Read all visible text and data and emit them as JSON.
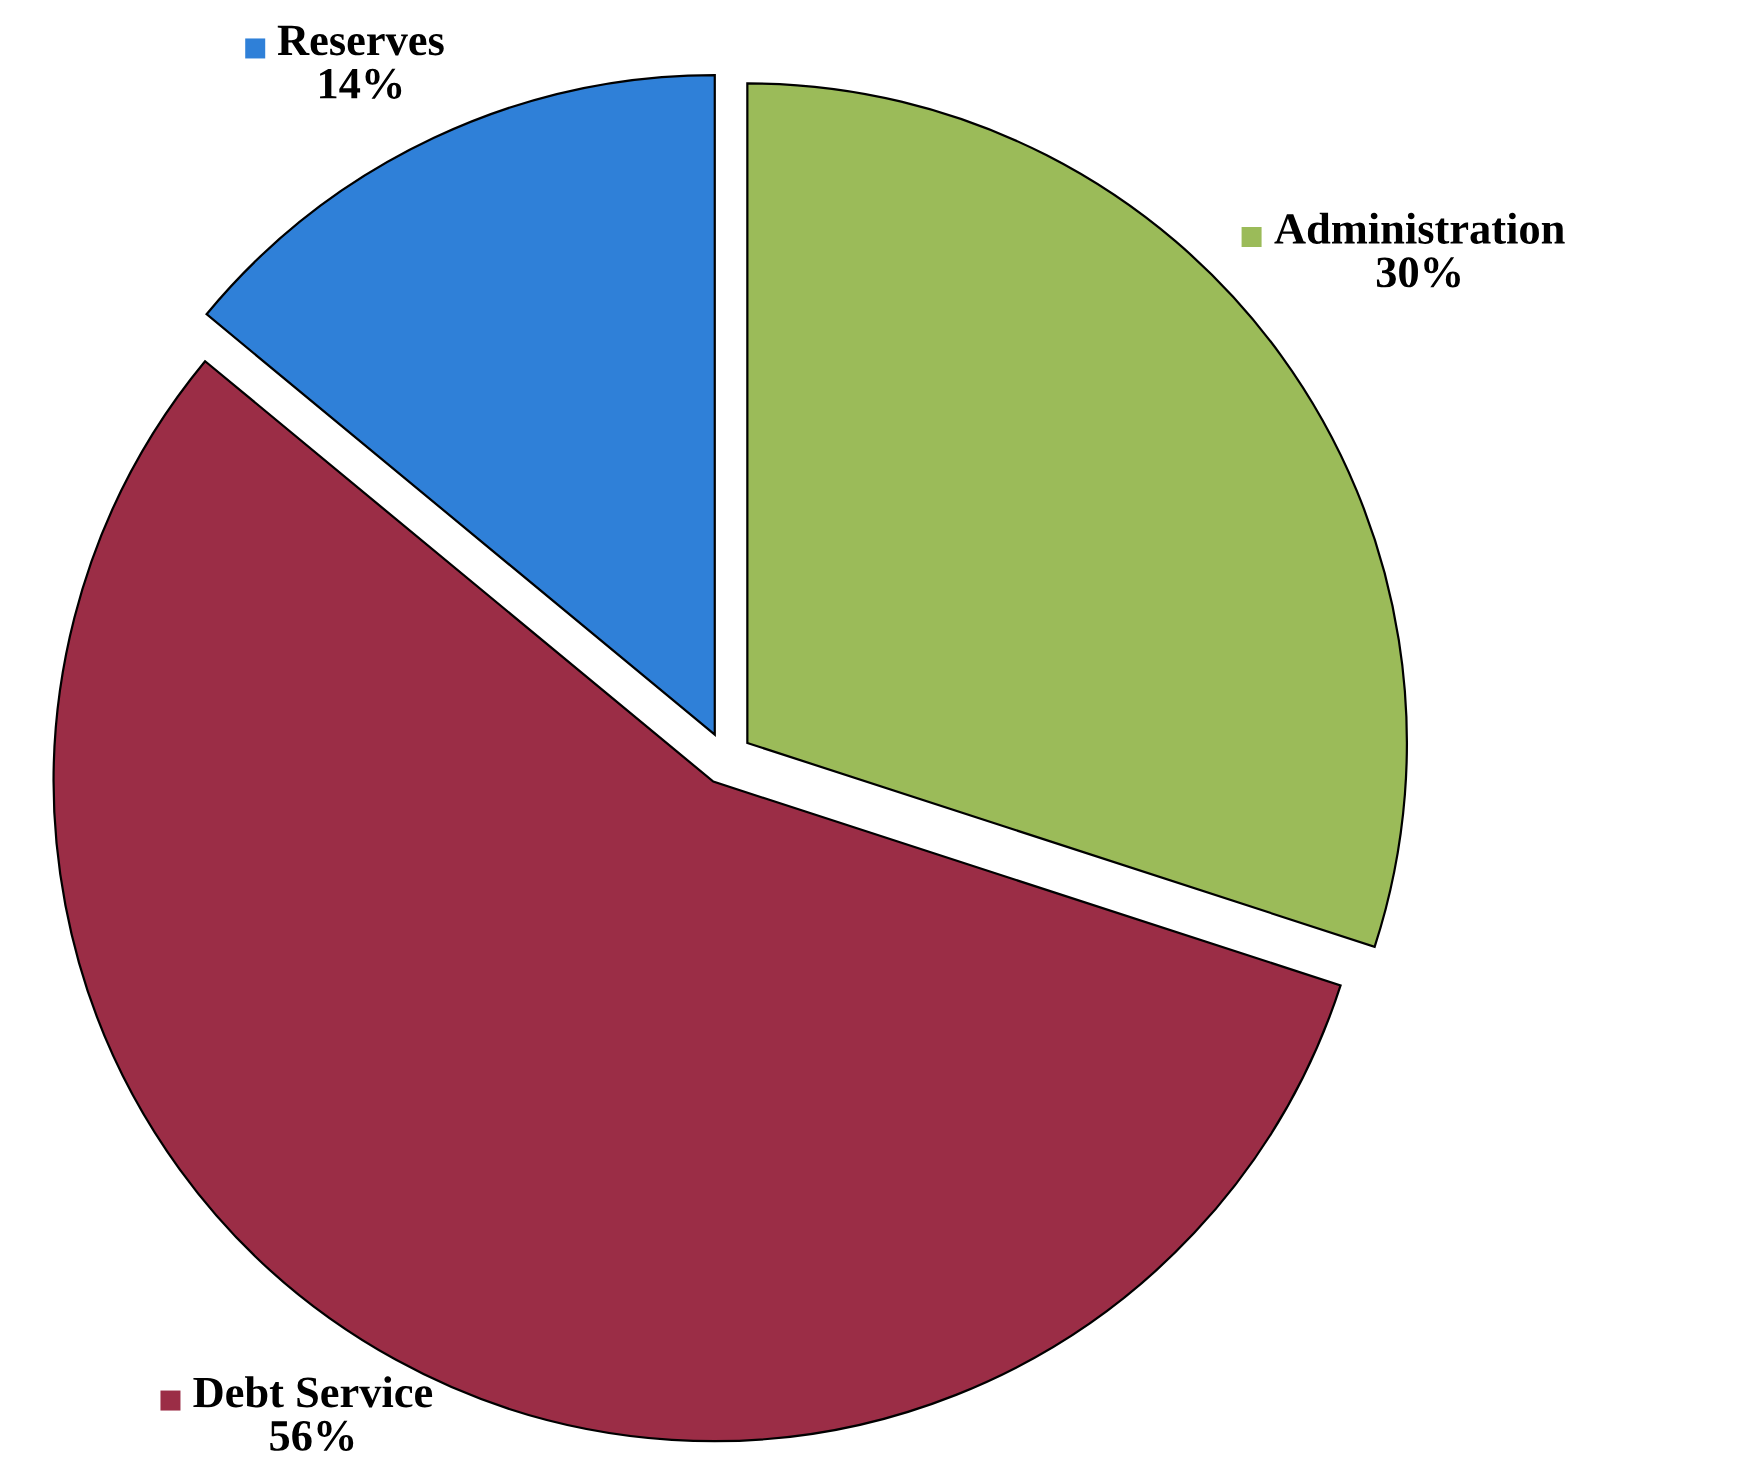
{
  "chart_data": {
    "type": "pie",
    "categories": [
      "Administration",
      "Debt Service",
      "Reserves"
    ],
    "values": [
      30,
      56,
      14
    ],
    "colors": [
      "#9bbb59",
      "#9b2d46",
      "#2f80d8"
    ],
    "value_labels": [
      "30%",
      "56%",
      "14%"
    ],
    "legend": "top right"
  }
}
